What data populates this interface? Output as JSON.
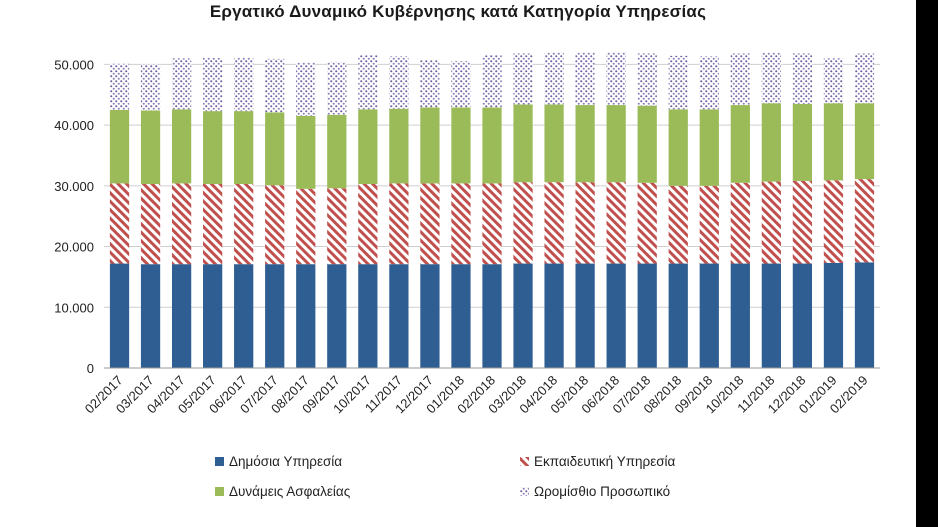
{
  "chart_data": {
    "type": "bar",
    "stacked": true,
    "title": "Εργατικό Δυναμικό Κυβέρνησης κατά Κατηγορία Υπηρεσίας",
    "xlabel": "",
    "ylabel": "",
    "ylim": [
      0,
      55000
    ],
    "yticks": [
      0,
      10000,
      20000,
      30000,
      40000,
      50000
    ],
    "ytick_labels": [
      "0",
      "10.000",
      "20.000",
      "30.000",
      "40.000",
      "50.000"
    ],
    "grid": true,
    "legend_position": "bottom",
    "categories": [
      "02/2017",
      "03/2017",
      "04/2017",
      "05/2017",
      "06/2017",
      "07/2017",
      "08/2017",
      "09/2017",
      "10/2017",
      "11/2017",
      "12/2017",
      "01/2018",
      "02/2018",
      "03/2018",
      "04/2018",
      "05/2018",
      "06/2018",
      "07/2018",
      "08/2018",
      "09/2018",
      "10/2018",
      "11/2018",
      "12/2018",
      "01/2019",
      "02/2019"
    ],
    "series": [
      {
        "name": "Δημόσια Υπηρεσία",
        "color": "#2F5E92",
        "pattern": "solid",
        "values": [
          17200,
          17100,
          17100,
          17100,
          17100,
          17100,
          17100,
          17100,
          17100,
          17100,
          17100,
          17100,
          17100,
          17200,
          17200,
          17200,
          17200,
          17200,
          17200,
          17200,
          17200,
          17200,
          17200,
          17300,
          17400
        ]
      },
      {
        "name": "Εκπαιδευτική Υπηρεσία",
        "color": "#C0504D",
        "pattern": "diagonal",
        "values": [
          13200,
          13200,
          13300,
          13200,
          13200,
          13000,
          12400,
          12500,
          13200,
          13300,
          13300,
          13300,
          13300,
          13400,
          13400,
          13400,
          13400,
          13300,
          12800,
          12800,
          13300,
          13500,
          13600,
          13600,
          13700
        ]
      },
      {
        "name": "Δυνάμεις Ασφαλείας",
        "color": "#9BBB59",
        "pattern": "solid",
        "values": [
          12100,
          12100,
          12200,
          12000,
          12000,
          12000,
          12000,
          12100,
          12300,
          12300,
          12500,
          12500,
          12500,
          12800,
          12800,
          12700,
          12700,
          12700,
          12600,
          12600,
          12800,
          12900,
          12700,
          12700,
          12500
        ]
      },
      {
        "name": "Ωρομίσθιο Προσωπικό",
        "color": "#7B6CA8",
        "pattern": "dotted",
        "values": [
          7600,
          7600,
          8400,
          8800,
          8800,
          8800,
          8800,
          8700,
          8900,
          8600,
          7800,
          7600,
          8600,
          8400,
          8600,
          8700,
          8700,
          8600,
          8800,
          8700,
          8500,
          8300,
          8300,
          7400,
          8200
        ]
      }
    ]
  }
}
